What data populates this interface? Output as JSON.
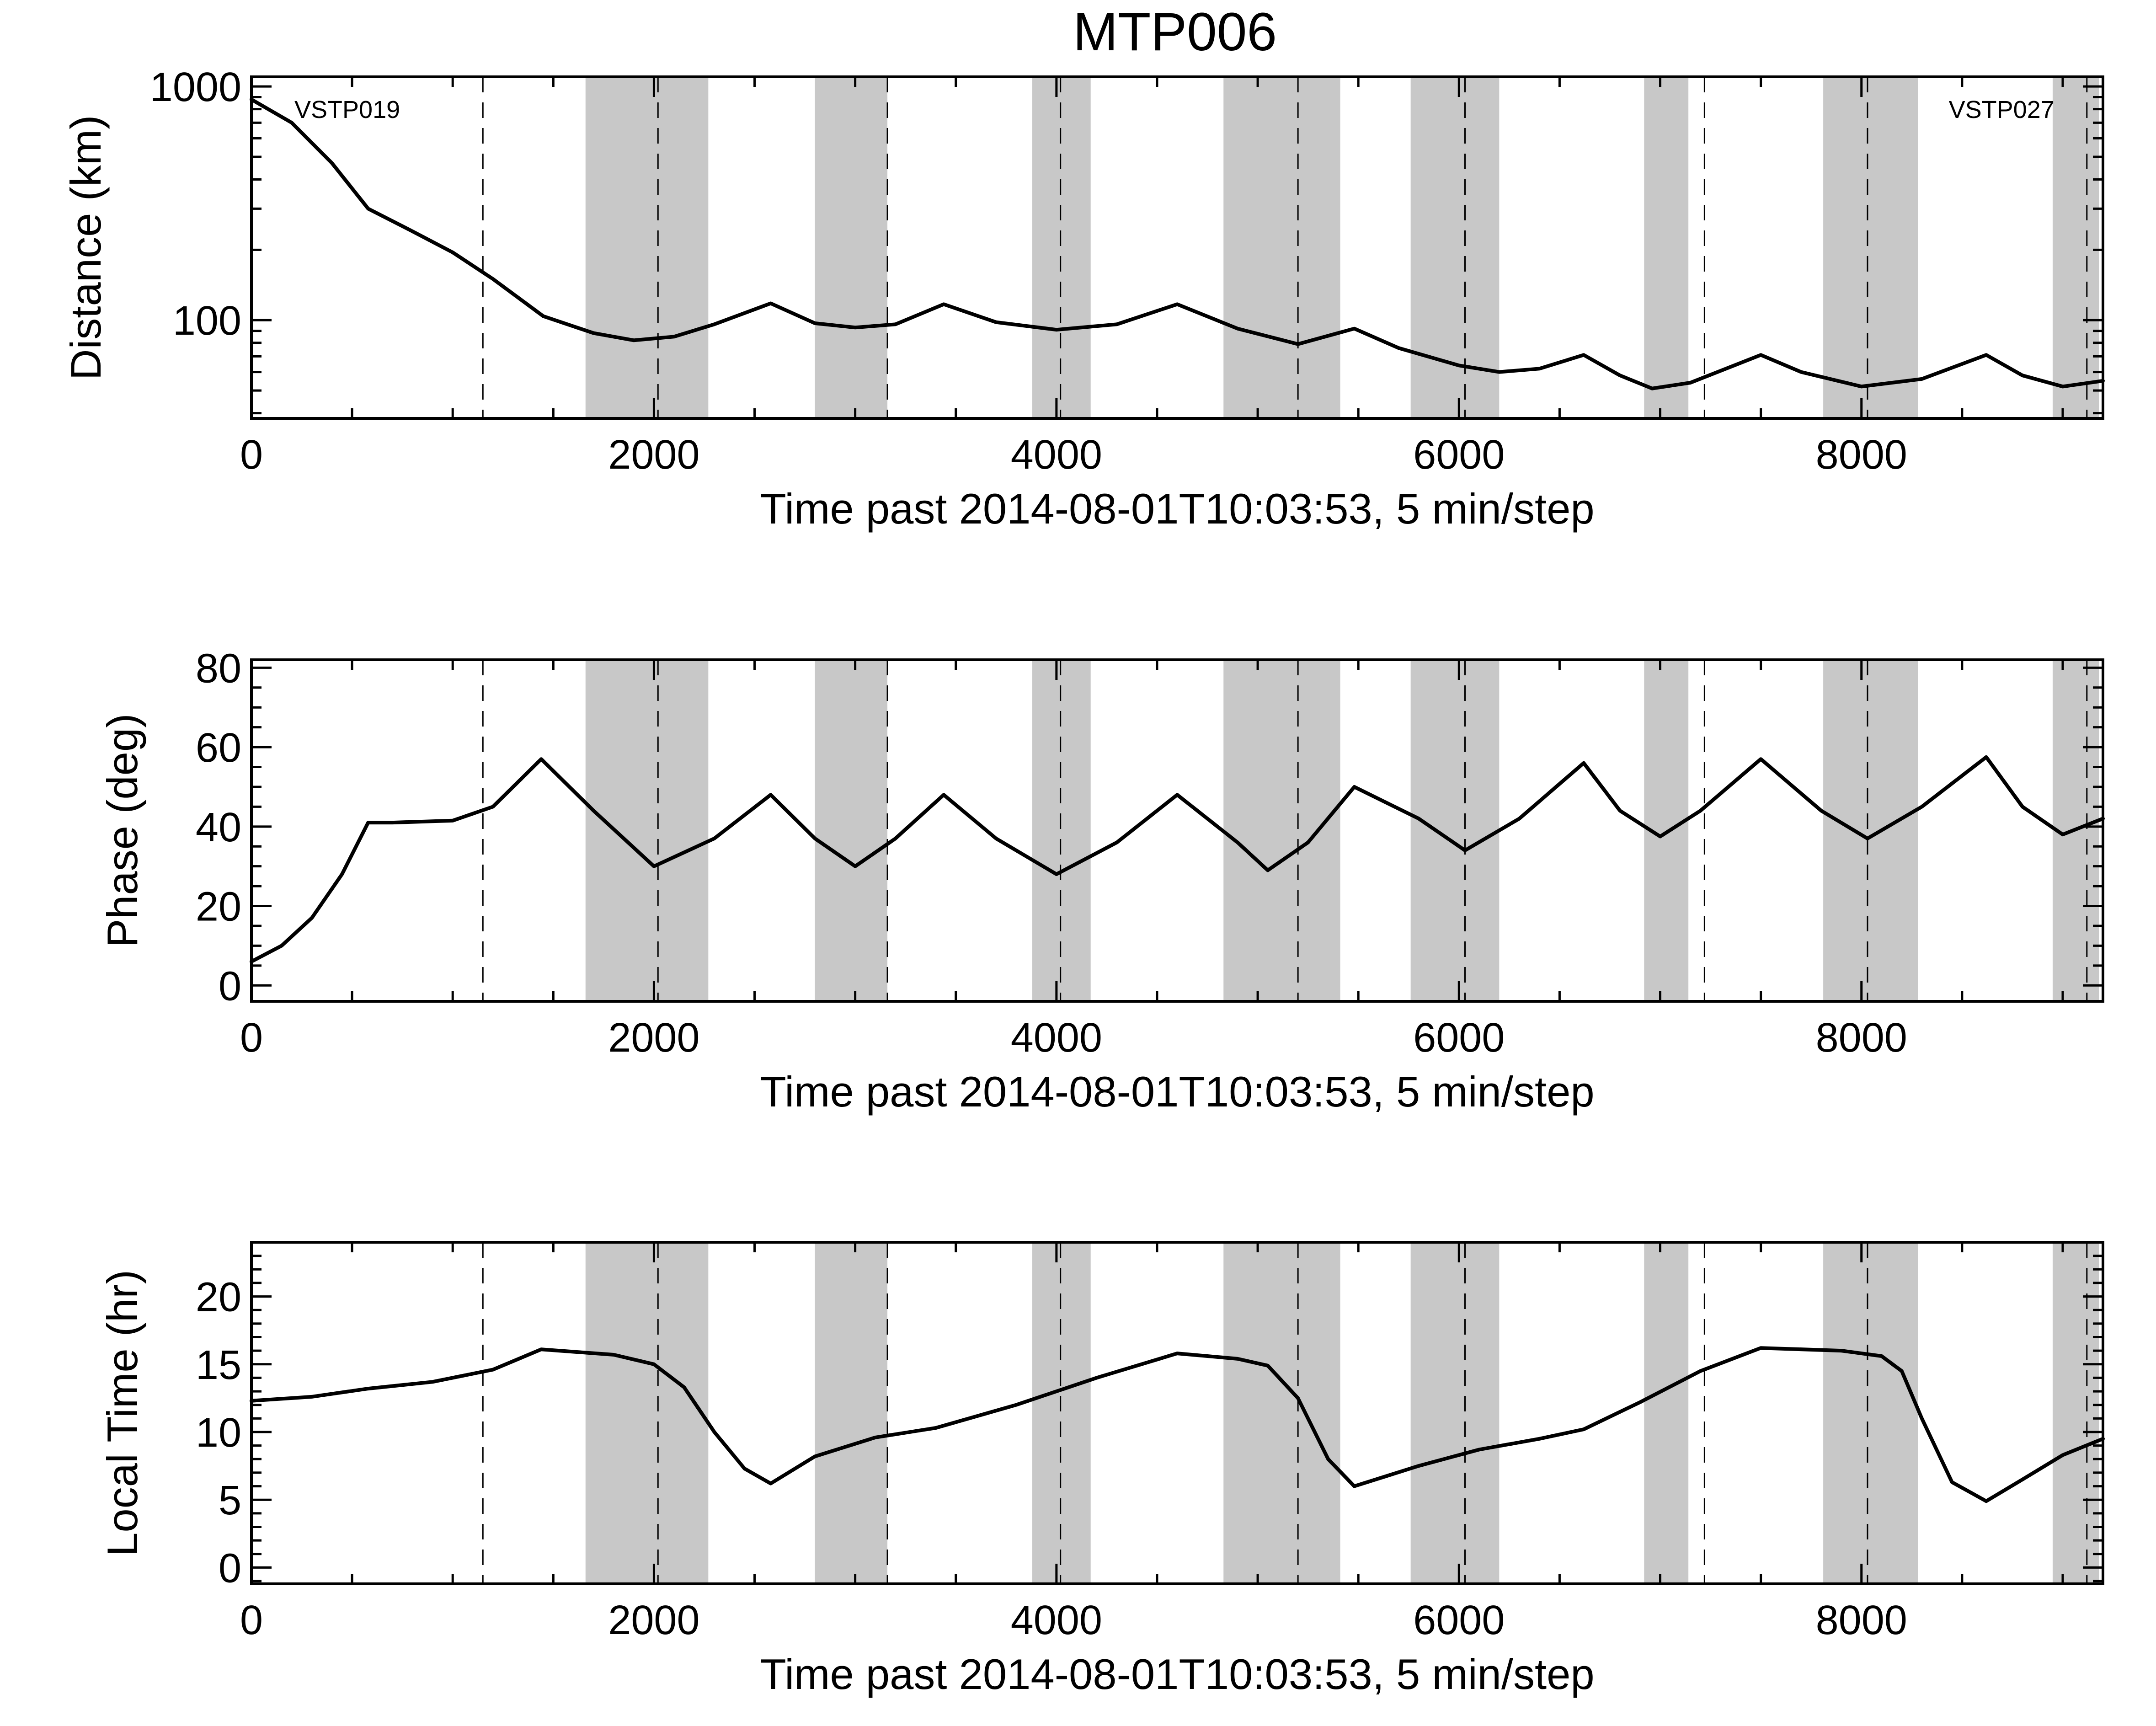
{
  "figure_title": "MTP006",
  "colors": {
    "shade": "#c8c8c8",
    "line": "#000000",
    "background": "#ffffff"
  },
  "chart_data": [
    {
      "type": "line",
      "id": "distance",
      "title": "MTP006",
      "xlabel": "Time past 2014-08-01T10:03:53, 5 min/step",
      "ylabel": "Distance (km)",
      "xlim": [
        0,
        9200
      ],
      "ylim": [
        38,
        1100
      ],
      "yscale": "log",
      "x_ticks": [
        0,
        2000,
        4000,
        6000,
        8000
      ],
      "y_ticks": [
        100,
        1000
      ],
      "y_tick_labels": [
        "100",
        "1000"
      ],
      "annotations": [
        {
          "text": "VSTP019",
          "x": 100,
          "y": 920
        },
        {
          "text": "VSTP027",
          "x": 8320,
          "y": 920
        }
      ],
      "series": [
        {
          "name": "Distance",
          "x": [
            0,
            200,
            400,
            580,
            800,
            1000,
            1200,
            1450,
            1700,
            1900,
            2100,
            2300,
            2580,
            2800,
            3000,
            3200,
            3440,
            3700,
            4000,
            4300,
            4600,
            4900,
            5200,
            5480,
            5700,
            6000,
            6200,
            6400,
            6620,
            6800,
            6960,
            7150,
            7500,
            7700,
            8000,
            8300,
            8620,
            8800,
            9000,
            9200
          ],
          "y": [
            880,
            700,
            470,
            300,
            240,
            195,
            150,
            104,
            88,
            82,
            85,
            96,
            118,
            97,
            93,
            96,
            117,
            98,
            91,
            96,
            117,
            92,
            79,
            92,
            76,
            64,
            60,
            62,
            71,
            58,
            51,
            54,
            71,
            60,
            52,
            56,
            71,
            58,
            52,
            55
          ]
        }
      ],
      "shaded_regions": [
        [
          1660,
          2270
        ],
        [
          2800,
          3160
        ],
        [
          3880,
          4170
        ],
        [
          4830,
          5410
        ],
        [
          5760,
          6200
        ],
        [
          6920,
          7140
        ],
        [
          7810,
          8280
        ],
        [
          8950,
          9180
        ]
      ],
      "vertical_lines": [
        1150,
        2020,
        3160,
        4020,
        5200,
        6030,
        7220,
        8030,
        9120
      ]
    },
    {
      "type": "line",
      "id": "phase",
      "xlabel": "Time past 2014-08-01T10:03:53, 5 min/step",
      "ylabel": "Phase (deg)",
      "xlim": [
        0,
        9200
      ],
      "ylim": [
        -4,
        82
      ],
      "x_ticks": [
        0,
        2000,
        4000,
        6000,
        8000
      ],
      "y_ticks": [
        0,
        20,
        40,
        60,
        80
      ],
      "series": [
        {
          "name": "Phase",
          "x": [
            0,
            150,
            300,
            450,
            580,
            700,
            1000,
            1200,
            1440,
            1700,
            2000,
            2300,
            2580,
            2800,
            3000,
            3200,
            3440,
            3700,
            4000,
            4300,
            4600,
            4900,
            5050,
            5250,
            5480,
            5800,
            6030,
            6300,
            6620,
            6800,
            7000,
            7200,
            7500,
            7800,
            8030,
            8300,
            8620,
            8800,
            9000,
            9200
          ],
          "y": [
            6,
            10,
            17,
            28,
            41,
            41,
            41.5,
            45,
            57,
            44,
            30,
            37,
            48,
            37,
            30,
            37,
            48,
            37,
            28,
            36,
            48,
            36,
            29,
            36,
            50,
            42,
            34,
            42,
            56,
            44,
            37.5,
            44,
            57,
            44,
            37,
            45,
            57.5,
            45,
            38,
            42
          ]
        }
      ],
      "shaded_regions": [
        [
          1660,
          2270
        ],
        [
          2800,
          3160
        ],
        [
          3880,
          4170
        ],
        [
          4830,
          5410
        ],
        [
          5760,
          6200
        ],
        [
          6920,
          7140
        ],
        [
          7810,
          8280
        ],
        [
          8950,
          9180
        ]
      ],
      "vertical_lines": [
        1150,
        2020,
        3160,
        4020,
        5200,
        6030,
        7220,
        8030,
        9120
      ]
    },
    {
      "type": "line",
      "id": "localtime",
      "xlabel": "Time past 2014-08-01T10:03:53, 5 min/step",
      "ylabel": "Local Time (hr)",
      "xlim": [
        0,
        9200
      ],
      "ylim": [
        -1.2,
        24
      ],
      "x_ticks": [
        0,
        2000,
        4000,
        6000,
        8000
      ],
      "y_ticks": [
        0,
        5,
        10,
        15,
        20
      ],
      "series": [
        {
          "name": "Local Time",
          "x": [
            0,
            300,
            580,
            900,
            1200,
            1440,
            1800,
            2000,
            2150,
            2300,
            2450,
            2580,
            2800,
            3100,
            3400,
            3800,
            4200,
            4600,
            4900,
            5050,
            5200,
            5350,
            5480,
            5800,
            6100,
            6400,
            6620,
            6900,
            7200,
            7500,
            7900,
            8100,
            8200,
            8300,
            8450,
            8620,
            8800,
            9000,
            9200
          ],
          "y": [
            12.3,
            12.6,
            13.2,
            13.7,
            14.6,
            16.1,
            15.7,
            15.0,
            13.3,
            10.0,
            7.3,
            6.2,
            8.2,
            9.6,
            10.3,
            12.0,
            14.0,
            15.8,
            15.4,
            14.9,
            12.5,
            8.0,
            6.0,
            7.5,
            8.7,
            9.5,
            10.2,
            12.2,
            14.5,
            16.2,
            16.0,
            15.6,
            14.5,
            11.0,
            6.3,
            4.9,
            6.5,
            8.3,
            9.5
          ]
        }
      ],
      "shaded_regions": [
        [
          1660,
          2270
        ],
        [
          2800,
          3160
        ],
        [
          3880,
          4170
        ],
        [
          4830,
          5410
        ],
        [
          5760,
          6200
        ],
        [
          6920,
          7140
        ],
        [
          7810,
          8280
        ],
        [
          8950,
          9180
        ]
      ],
      "vertical_lines": [
        1150,
        2020,
        3160,
        4020,
        5200,
        6030,
        7220,
        8030,
        9120
      ]
    }
  ]
}
